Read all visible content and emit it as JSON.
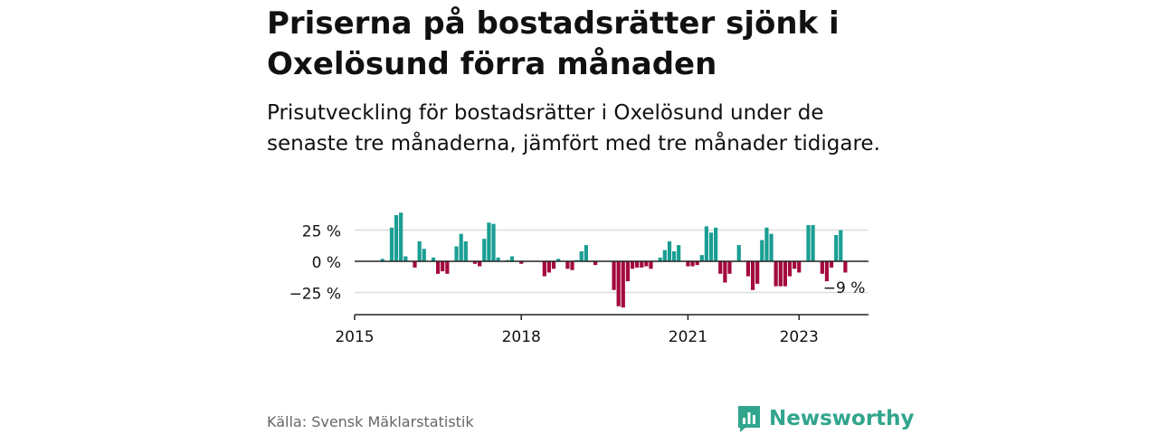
{
  "header": {
    "title": "Priserna på bostadsrätter sjönk i Oxelösund förra månaden",
    "subtitle": "Prisutveckling för bostadsrätter i Oxelösund under de senaste tre månaderna, jämfört med tre månader tidigare."
  },
  "footer": {
    "source": "Källa: Svensk Mäklarstatistik",
    "brand": "Newsworthy"
  },
  "colors": {
    "positive": "#1a9e93",
    "negative": "#a3093f",
    "brand": "#31a58d",
    "grid": "#dddddd"
  },
  "icons": {
    "brand_logo": "newsworthy-chart-bubble-icon"
  },
  "chart_data": {
    "type": "bar",
    "ylabel": "",
    "xlabel": "",
    "ylim": [
      -40,
      40
    ],
    "yticks": [
      25,
      0,
      -25
    ],
    "ytick_labels": [
      "25 %",
      "0 %",
      "−25 %"
    ],
    "xticks": [
      2015,
      2018,
      2021,
      2023
    ],
    "xtick_labels": [
      "2015",
      "2018",
      "2021",
      "2023"
    ],
    "xlim": [
      2015,
      2024.25
    ],
    "grid": true,
    "annotation": "−9 %",
    "series": [
      {
        "x": [
          2015.5,
          2015.667,
          2015.75,
          2015.833,
          2015.917,
          2016.0,
          2016.083,
          2016.167,
          2016.25,
          2016.333,
          2016.417,
          2016.5,
          2016.583,
          2016.667,
          2016.75,
          2016.833,
          2016.917,
          2017.0,
          2017.083,
          2017.167,
          2017.25,
          2017.333,
          2017.417,
          2017.5,
          2017.583,
          2017.667,
          2017.75,
          2017.833,
          2017.917,
          2018.0,
          2018.083,
          2018.167,
          2018.25,
          2018.333,
          2018.417,
          2018.5,
          2018.583,
          2018.667,
          2018.75,
          2018.833,
          2018.917,
          2019.0,
          2019.083,
          2019.167,
          2019.25,
          2019.333,
          2019.417,
          2019.5,
          2019.583,
          2019.667,
          2019.75,
          2019.833,
          2019.917,
          2020.0,
          2020.083,
          2020.167,
          2020.25,
          2020.333,
          2020.417,
          2020.5,
          2020.583,
          2020.667,
          2020.75,
          2020.833,
          2020.917,
          2021.0,
          2021.083,
          2021.167,
          2021.25,
          2021.333,
          2021.417,
          2021.5,
          2021.583,
          2021.667,
          2021.75,
          2021.833,
          2021.917,
          2022.0,
          2022.083,
          2022.167,
          2022.25,
          2022.333,
          2022.417,
          2022.5,
          2022.583,
          2022.667,
          2022.75,
          2022.833,
          2022.917,
          2023.0,
          2023.083,
          2023.167,
          2023.25,
          2023.333,
          2023.417,
          2023.5,
          2023.583,
          2023.667,
          2023.75,
          2023.833
        ],
        "values": [
          2,
          27,
          37,
          39,
          4,
          0,
          -5,
          16,
          10,
          0,
          3,
          -10,
          -8,
          -10,
          0,
          12,
          22,
          16,
          0,
          -2,
          -4,
          18,
          31,
          30,
          3,
          0,
          1,
          4,
          0,
          -2,
          0,
          0,
          0,
          0,
          -12,
          -9,
          -6,
          2,
          0,
          -6,
          -7,
          1,
          8,
          13,
          0,
          -3,
          0,
          0,
          0,
          -23,
          -36,
          -37,
          -16,
          -6,
          -5,
          -5,
          -4,
          -6,
          0,
          3,
          9,
          16,
          8,
          13,
          0,
          -4,
          -4,
          -3,
          5,
          28,
          23,
          27,
          -10,
          -17,
          -10,
          0,
          13,
          0,
          -12,
          -23,
          -18,
          17,
          27,
          22,
          -20,
          -20,
          -20,
          -12,
          -6,
          -9,
          0,
          29,
          29,
          0,
          -10,
          -16,
          -5,
          21,
          25,
          -9
        ]
      }
    ]
  }
}
